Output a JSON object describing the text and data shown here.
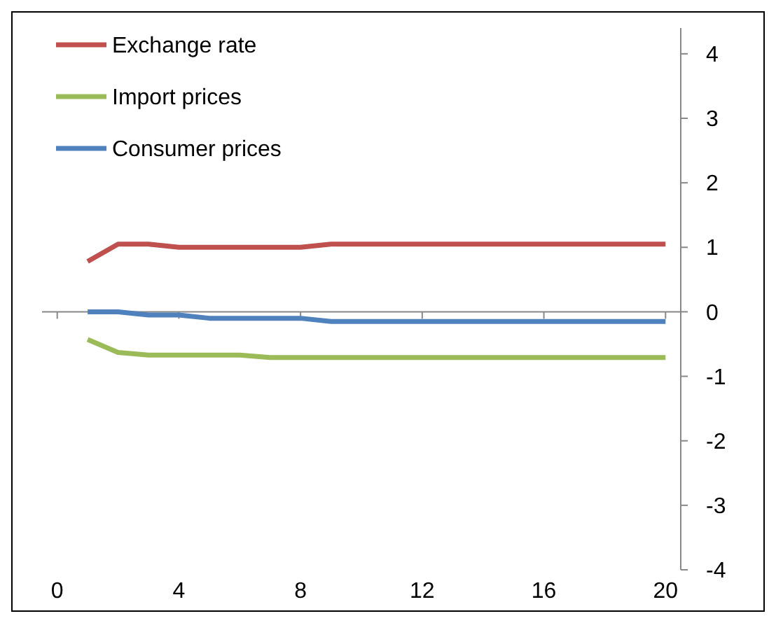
{
  "chart_data": {
    "type": "line",
    "x": [
      1,
      2,
      3,
      4,
      5,
      6,
      7,
      8,
      9,
      10,
      11,
      12,
      13,
      14,
      15,
      16,
      17,
      18,
      19,
      20
    ],
    "xlim": [
      -0.5,
      20.5
    ],
    "xticks": [
      0,
      4,
      8,
      12,
      16,
      20
    ],
    "ylim": [
      -4,
      4.4
    ],
    "yticks": [
      -4,
      -3,
      -2,
      -1,
      0,
      1,
      2,
      3,
      4
    ],
    "legend": "top left",
    "line_style": "solid",
    "marker": "none",
    "series": [
      {
        "name": "Exchange rate",
        "color": "#c0504d",
        "values": [
          0.78,
          1.05,
          1.05,
          1.0,
          1.0,
          1.0,
          1.0,
          1.0,
          1.05,
          1.05,
          1.05,
          1.05,
          1.05,
          1.05,
          1.05,
          1.05,
          1.05,
          1.05,
          1.05,
          1.05
        ]
      },
      {
        "name": "Import prices",
        "color": "#9bbb59",
        "values": [
          -0.43,
          -0.63,
          -0.67,
          -0.67,
          -0.67,
          -0.67,
          -0.71,
          -0.71,
          -0.71,
          -0.71,
          -0.71,
          -0.71,
          -0.71,
          -0.71,
          -0.71,
          -0.71,
          -0.71,
          -0.71,
          -0.71,
          -0.71
        ]
      },
      {
        "name": "Consumer prices",
        "color": "#4f81bd",
        "values": [
          0,
          0,
          -0.05,
          -0.05,
          -0.1,
          -0.1,
          -0.1,
          -0.1,
          -0.15,
          -0.15,
          -0.15,
          -0.15,
          -0.15,
          -0.15,
          -0.15,
          -0.15,
          -0.15,
          -0.15,
          -0.15,
          -0.15
        ]
      }
    ]
  }
}
